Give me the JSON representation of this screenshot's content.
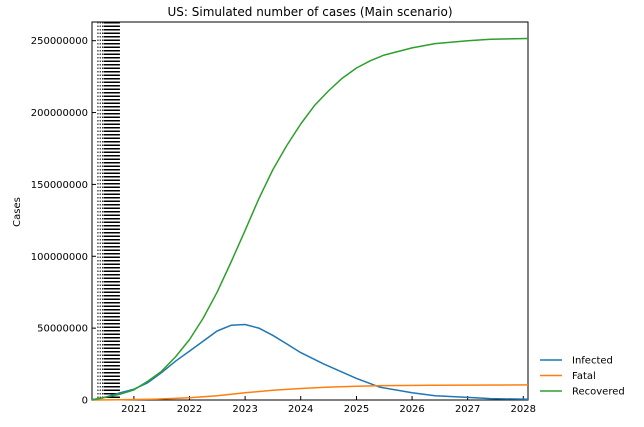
{
  "chart_data": {
    "type": "line",
    "title": "US: Simulated number of cases (Main scenario)",
    "xlabel": "",
    "ylabel": "Cases",
    "xlim": [
      "2020-04-01",
      "2028-02-01"
    ],
    "ylim": [
      0,
      263000000
    ],
    "x_ticks": [
      {
        "date": "2021-01-01",
        "label": "2021"
      },
      {
        "date": "2022-01-01",
        "label": "2022"
      },
      {
        "date": "2023-01-01",
        "label": "2023"
      },
      {
        "date": "2024-01-01",
        "label": "2024"
      },
      {
        "date": "2025-01-01",
        "label": "2025"
      },
      {
        "date": "2026-01-01",
        "label": "2026"
      },
      {
        "date": "2027-01-01",
        "label": "2027"
      },
      {
        "date": "2028-01-01",
        "label": "2028"
      }
    ],
    "y_ticks": [
      {
        "value": 0,
        "label": "0"
      },
      {
        "value": 50000000,
        "label": "50000000"
      },
      {
        "value": 100000000,
        "label": "100000000"
      },
      {
        "value": 150000000,
        "label": "150000000"
      },
      {
        "value": 200000000,
        "label": "200000000"
      },
      {
        "value": 250000000,
        "label": "250000000"
      }
    ],
    "phase_change_dates": [
      "2020-05-10",
      "2020-05-25",
      "2020-06-10",
      "2020-06-20",
      "2020-06-25",
      "2020-06-29",
      "2020-07-03",
      "2020-07-06",
      "2020-07-09",
      "2020-07-12",
      "2020-07-15",
      "2020-07-18",
      "2020-07-21",
      "2020-07-24",
      "2020-07-27",
      "2020-07-30",
      "2020-08-02",
      "2020-08-05",
      "2020-08-08",
      "2020-08-11",
      "2020-08-14",
      "2020-08-17",
      "2020-08-20",
      "2020-08-23",
      "2020-08-26",
      "2020-08-29",
      "2020-09-01",
      "2020-09-04",
      "2020-09-07",
      "2020-09-10",
      "2020-09-13",
      "2020-09-16",
      "2020-09-19",
      "2020-09-22",
      "2020-09-25",
      "2020-09-28"
    ],
    "legend_position": "lower-right-outside",
    "series": [
      {
        "name": "Infected",
        "color": "#1f77b4",
        "points": [
          [
            "2020-04-01",
            300000
          ],
          [
            "2020-06-01",
            1200000
          ],
          [
            "2020-08-01",
            3000000
          ],
          [
            "2020-10-01",
            5000000
          ],
          [
            "2021-01-01",
            7500000
          ],
          [
            "2021-04-01",
            12000000
          ],
          [
            "2021-07-01",
            19000000
          ],
          [
            "2021-10-01",
            27000000
          ],
          [
            "2022-01-01",
            34000000
          ],
          [
            "2022-04-01",
            41000000
          ],
          [
            "2022-07-01",
            48000000
          ],
          [
            "2022-10-01",
            52000000
          ],
          [
            "2023-01-01",
            52500000
          ],
          [
            "2023-04-01",
            50000000
          ],
          [
            "2023-07-01",
            45000000
          ],
          [
            "2023-10-01",
            39000000
          ],
          [
            "2024-01-01",
            33000000
          ],
          [
            "2024-06-01",
            25000000
          ],
          [
            "2025-01-01",
            15000000
          ],
          [
            "2025-06-01",
            9000000
          ],
          [
            "2026-01-01",
            5000000
          ],
          [
            "2026-06-01",
            3000000
          ],
          [
            "2027-01-01",
            1800000
          ],
          [
            "2027-06-01",
            1000000
          ],
          [
            "2028-02-01",
            500000
          ]
        ]
      },
      {
        "name": "Fatal",
        "color": "#ff7f0e",
        "points": [
          [
            "2020-04-01",
            0
          ],
          [
            "2020-10-01",
            200000
          ],
          [
            "2021-06-01",
            600000
          ],
          [
            "2022-01-01",
            1500000
          ],
          [
            "2022-07-01",
            3000000
          ],
          [
            "2023-01-01",
            5000000
          ],
          [
            "2023-07-01",
            6800000
          ],
          [
            "2024-01-01",
            8000000
          ],
          [
            "2024-07-01",
            9000000
          ],
          [
            "2025-01-01",
            9600000
          ],
          [
            "2025-07-01",
            10000000
          ],
          [
            "2026-06-01",
            10300000
          ],
          [
            "2028-02-01",
            10500000
          ]
        ]
      },
      {
        "name": "Recovered",
        "color": "#2ca02c",
        "points": [
          [
            "2020-04-01",
            0
          ],
          [
            "2020-10-01",
            4000000
          ],
          [
            "2021-01-01",
            7000000
          ],
          [
            "2021-04-01",
            13000000
          ],
          [
            "2021-07-01",
            20000000
          ],
          [
            "2021-10-01",
            30000000
          ],
          [
            "2022-01-01",
            42000000
          ],
          [
            "2022-04-01",
            57000000
          ],
          [
            "2022-07-01",
            75000000
          ],
          [
            "2022-10-01",
            96000000
          ],
          [
            "2023-01-01",
            118000000
          ],
          [
            "2023-04-01",
            140000000
          ],
          [
            "2023-07-01",
            160000000
          ],
          [
            "2023-10-01",
            177000000
          ],
          [
            "2024-01-01",
            192000000
          ],
          [
            "2024-04-01",
            205000000
          ],
          [
            "2024-07-01",
            215000000
          ],
          [
            "2024-10-01",
            224000000
          ],
          [
            "2025-01-01",
            231000000
          ],
          [
            "2025-04-01",
            236000000
          ],
          [
            "2025-07-01",
            240000000
          ],
          [
            "2026-01-01",
            245000000
          ],
          [
            "2026-06-01",
            248000000
          ],
          [
            "2027-01-01",
            250000000
          ],
          [
            "2027-06-01",
            251000000
          ],
          [
            "2028-02-01",
            251500000
          ]
        ]
      }
    ]
  }
}
